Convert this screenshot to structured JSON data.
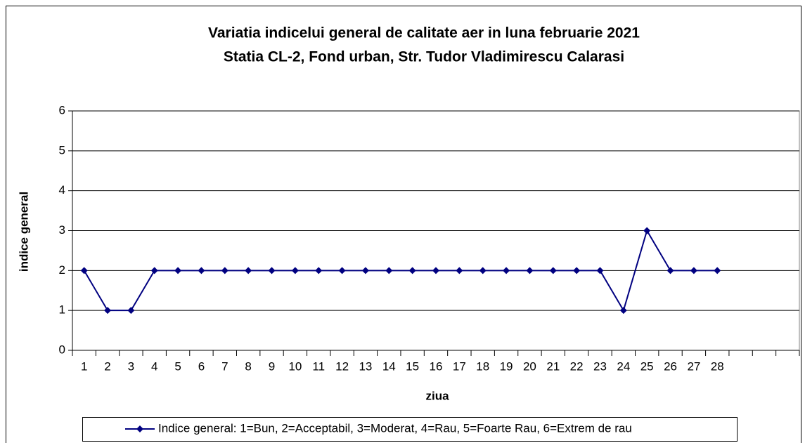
{
  "chart_data": {
    "type": "line",
    "title": [
      "Variatia indicelui general de calitate aer in luna februarie 2021",
      "Statia CL-2, Fond urban,  Str. Tudor Vladimirescu Calarasi"
    ],
    "x_label": "ziua",
    "y_label": "indice general",
    "categories": [
      "1",
      "2",
      "3",
      "4",
      "5",
      "6",
      "7",
      "8",
      "9",
      "10",
      "11",
      "12",
      "13",
      "14",
      "15",
      "16",
      "17",
      "18",
      "19",
      "20",
      "21",
      "22",
      "23",
      "24",
      "25",
      "26",
      "27",
      "28",
      null,
      null,
      null
    ],
    "series": [
      {
        "name": "Indice general: 1=Bun, 2=Acceptabil, 3=Moderat, 4=Rau, 5=Foarte Rau, 6=Extrem de rau",
        "color": "#000080",
        "values": [
          2,
          1,
          1,
          2,
          2,
          2,
          2,
          2,
          2,
          2,
          2,
          2,
          2,
          2,
          2,
          2,
          2,
          2,
          2,
          2,
          2,
          2,
          2,
          1,
          3,
          2,
          2,
          2,
          null,
          null,
          null
        ]
      }
    ],
    "ylim": [
      0,
      6
    ],
    "yticks": [
      0,
      1,
      2,
      3,
      4,
      5,
      6
    ],
    "grid": true,
    "legend": "bottom"
  }
}
